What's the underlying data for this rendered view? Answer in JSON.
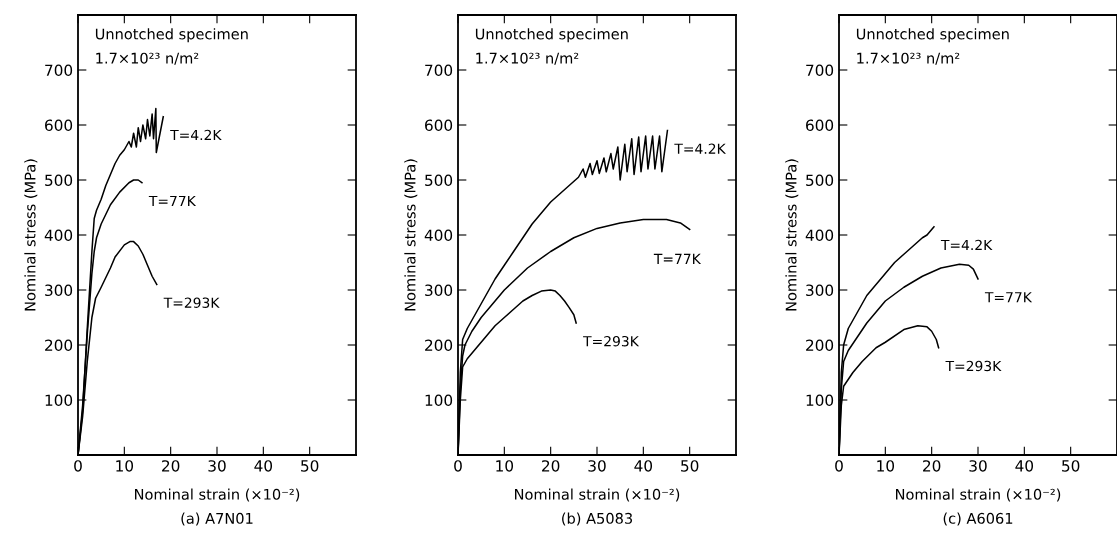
{
  "chart_data": [
    {
      "type": "line",
      "title": "(a) A7N01",
      "xlabel": "Nominal strain (×10⁻²)",
      "ylabel": "Nominal stress (MPa)",
      "annotations": [
        "Unnotched specimen",
        "1.7×10²³ n/m²"
      ],
      "xlim": [
        0,
        60
      ],
      "ylim": [
        0,
        800
      ],
      "xticks": [
        0,
        10,
        20,
        30,
        40,
        50
      ],
      "yticks": [
        100,
        200,
        300,
        400,
        500,
        600,
        700
      ],
      "grid": false,
      "legend": false,
      "marker": "none",
      "line_style": "solid",
      "series": [
        {
          "name": "T=4.2K",
          "color": "#000000",
          "x": [
            0,
            1,
            2,
            3,
            3.5,
            4,
            5,
            6,
            7,
            8,
            9,
            10,
            11,
            11.5,
            12,
            12.6,
            13,
            13.5,
            14,
            14.6,
            15,
            15.5,
            16,
            16.3,
            16.8,
            16.9,
            18.4
          ],
          "values": [
            0,
            80,
            230,
            370,
            430,
            445,
            465,
            490,
            510,
            530,
            545,
            555,
            570,
            560,
            585,
            560,
            595,
            570,
            600,
            575,
            610,
            580,
            620,
            575,
            630,
            550,
            615
          ]
        },
        {
          "name": "T=77K",
          "color": "#000000",
          "x": [
            0,
            1,
            2,
            3,
            3.5,
            4,
            5,
            7,
            9,
            11,
            12,
            13,
            13.8
          ],
          "values": [
            0,
            90,
            220,
            330,
            370,
            395,
            420,
            455,
            478,
            495,
            500,
            500,
            495
          ]
        },
        {
          "name": "T=293K",
          "color": "#000000",
          "x": [
            0,
            1,
            2,
            3,
            3.8,
            5,
            7,
            8,
            10,
            11.2,
            12,
            13,
            14,
            15,
            16,
            17
          ],
          "values": [
            0,
            70,
            170,
            250,
            285,
            305,
            340,
            360,
            382,
            388,
            388,
            380,
            365,
            345,
            325,
            310
          ]
        }
      ]
    },
    {
      "type": "line",
      "title": "(b) A5083",
      "xlabel": "Nominal strain (×10⁻²)",
      "ylabel": "Nominal stress (MPa)",
      "annotations": [
        "Unnotched specimen",
        "1.7×10²³ n/m²"
      ],
      "xlim": [
        0,
        60
      ],
      "ylim": [
        0,
        800
      ],
      "xticks": [
        0,
        10,
        20,
        30,
        40,
        50
      ],
      "yticks": [
        100,
        200,
        300,
        400,
        500,
        600,
        700
      ],
      "grid": false,
      "legend": false,
      "marker": "none",
      "line_style": "solid",
      "series": [
        {
          "name": "T=4.2K",
          "color": "#000000",
          "x": [
            0,
            0.5,
            1,
            2,
            4,
            6,
            8,
            10,
            12,
            14,
            16,
            18,
            20,
            22,
            24,
            26,
            27,
            27.5,
            28.5,
            29,
            30,
            30.5,
            31.5,
            32,
            33,
            33.5,
            34.5,
            35,
            36,
            36.5,
            37.5,
            38,
            39,
            39.5,
            40.5,
            41,
            42,
            42.5,
            43.5,
            44,
            45.2
          ],
          "values": [
            0,
            150,
            210,
            230,
            260,
            290,
            320,
            345,
            370,
            395,
            420,
            440,
            460,
            475,
            490,
            505,
            520,
            505,
            530,
            510,
            535,
            512,
            540,
            515,
            548,
            520,
            560,
            500,
            565,
            515,
            575,
            510,
            578,
            515,
            580,
            520,
            580,
            520,
            580,
            515,
            590
          ]
        },
        {
          "name": "T=77K",
          "color": "#000000",
          "x": [
            0,
            0.5,
            1,
            1.5,
            3,
            5,
            8,
            10,
            15,
            20,
            25,
            30,
            35,
            40,
            45,
            48,
            50
          ],
          "values": [
            0,
            120,
            180,
            200,
            225,
            250,
            280,
            300,
            340,
            370,
            395,
            412,
            422,
            428,
            428,
            422,
            410
          ]
        },
        {
          "name": "T=293K",
          "color": "#000000",
          "x": [
            0,
            0.5,
            1,
            2,
            4,
            6,
            8,
            10,
            12,
            14,
            16,
            18,
            20,
            21,
            22,
            23,
            24,
            25,
            25.5
          ],
          "values": [
            0,
            100,
            160,
            175,
            195,
            215,
            235,
            250,
            265,
            280,
            290,
            298,
            300,
            298,
            290,
            280,
            268,
            255,
            240
          ]
        }
      ]
    },
    {
      "type": "line",
      "title": "(c) A6061",
      "xlabel": "Nominal strain (×10⁻²)",
      "ylabel": "Nominal stress (MPa)",
      "annotations": [
        "Unnotched specimen",
        "1.7×10²³ n/m²"
      ],
      "xlim": [
        0,
        60
      ],
      "ylim": [
        0,
        800
      ],
      "xticks": [
        0,
        10,
        20,
        30,
        40,
        50
      ],
      "yticks": [
        100,
        200,
        300,
        400,
        500,
        600,
        700
      ],
      "grid": false,
      "legend": false,
      "marker": "none",
      "line_style": "solid",
      "series": [
        {
          "name": "T=4.2K",
          "color": "#000000",
          "x": [
            0,
            0.5,
            1,
            2,
            4,
            6,
            8,
            10,
            12,
            14,
            16,
            18,
            19,
            20,
            20.5
          ],
          "values": [
            0,
            150,
            200,
            230,
            260,
            290,
            310,
            330,
            350,
            365,
            380,
            395,
            400,
            410,
            415
          ]
        },
        {
          "name": "T=77K",
          "color": "#000000",
          "x": [
            0,
            0.5,
            1,
            2,
            4,
            6,
            8,
            10,
            14,
            18,
            22,
            26,
            28,
            29,
            30
          ],
          "values": [
            0,
            120,
            170,
            190,
            215,
            240,
            260,
            280,
            305,
            325,
            340,
            347,
            345,
            338,
            320
          ]
        },
        {
          "name": "T=293K",
          "color": "#000000",
          "x": [
            0,
            0.5,
            1,
            3,
            5,
            8,
            10,
            14,
            17,
            19,
            20,
            21,
            21.5
          ],
          "values": [
            0,
            90,
            125,
            150,
            170,
            195,
            205,
            228,
            235,
            233,
            225,
            210,
            195
          ]
        }
      ]
    }
  ]
}
